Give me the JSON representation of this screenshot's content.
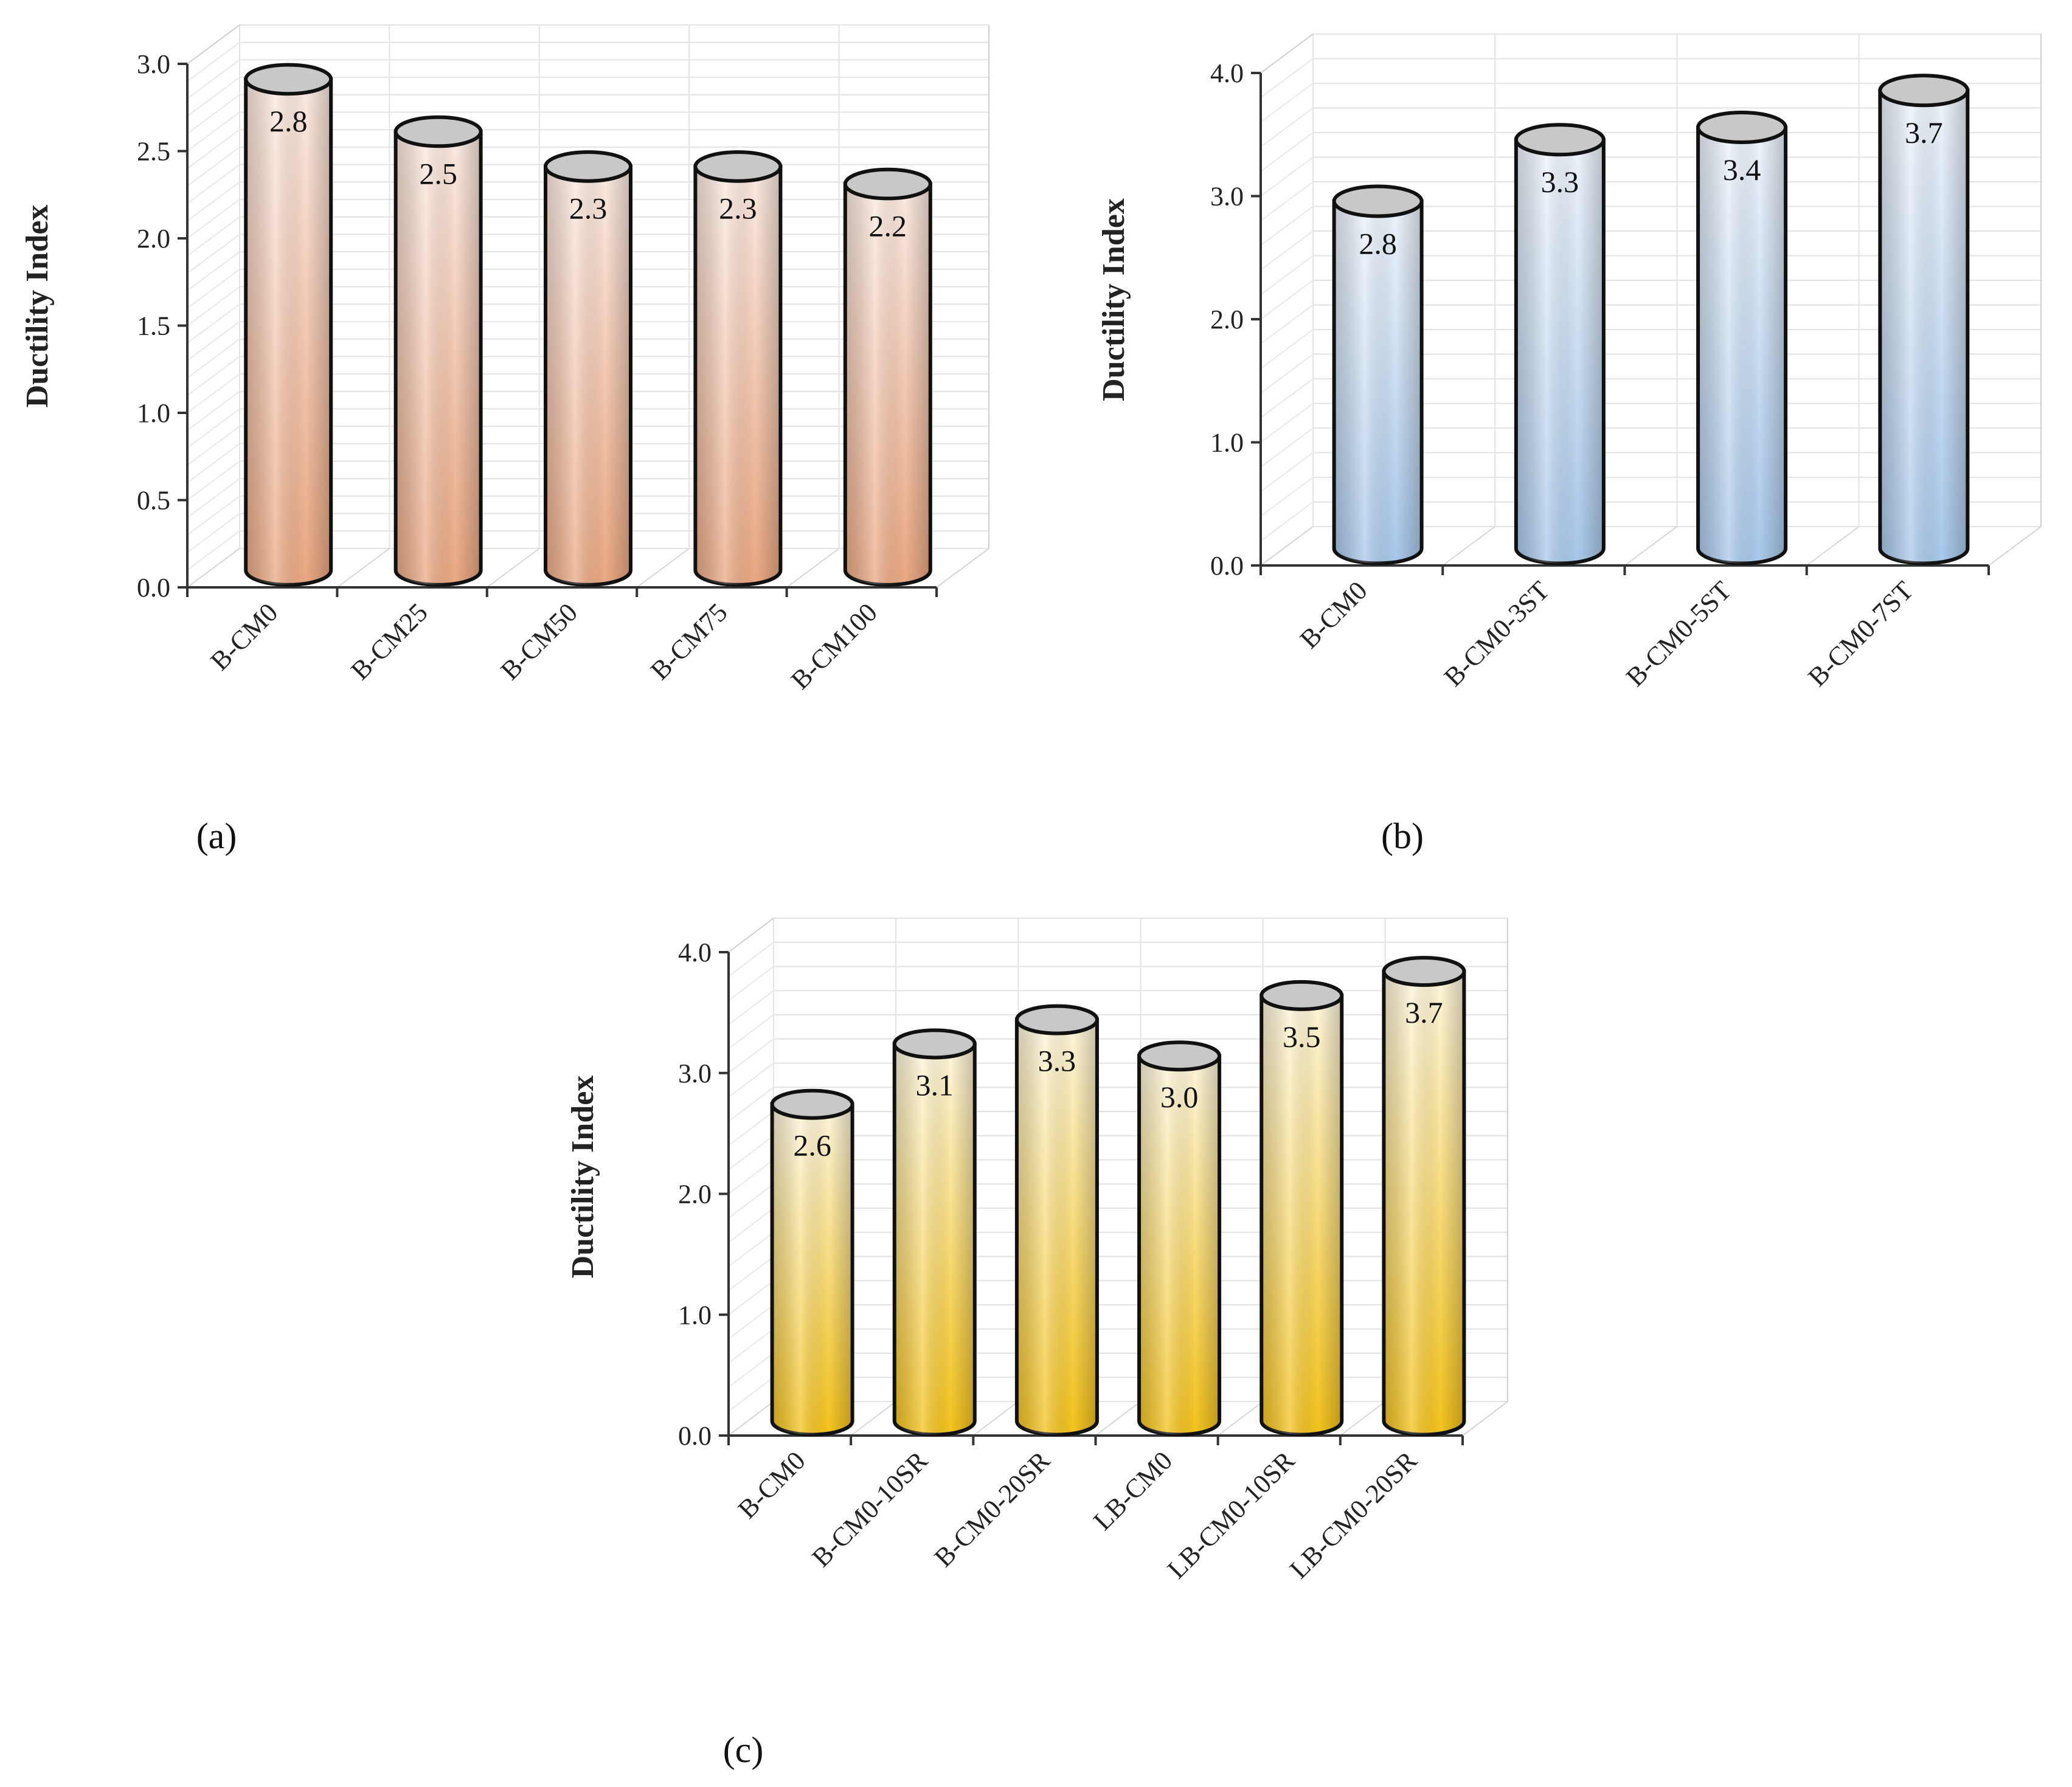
{
  "chart_data": [
    {
      "id": "a",
      "type": "bar",
      "style": "3d-cylinder",
      "panel_label": "(a)",
      "ylabel": "Ductility Index",
      "xlabel": "",
      "ylim": [
        0,
        3.0
      ],
      "yticks": [
        "0.0",
        "0.5",
        "1.0",
        "1.5",
        "2.0",
        "2.5",
        "3.0"
      ],
      "ytick_values": [
        0,
        0.5,
        1.0,
        1.5,
        2.0,
        2.5,
        3.0
      ],
      "minor_grid_step": 0.1,
      "categories": [
        "B-CM0",
        "B-CM25",
        "B-CM50",
        "B-CM75",
        "B-CM100"
      ],
      "values": [
        2.8,
        2.5,
        2.3,
        2.3,
        2.2
      ],
      "data_labels": [
        "2.8",
        "2.5",
        "2.3",
        "2.3",
        "2.2"
      ],
      "colors": {
        "top": "#fbeae2",
        "bottom": "#eaa882",
        "cap": "#c8c8c8"
      }
    },
    {
      "id": "b",
      "type": "bar",
      "style": "3d-cylinder",
      "panel_label": "(b)",
      "ylabel": "Ductility Index",
      "xlabel": "",
      "ylim": [
        0,
        4.0
      ],
      "yticks": [
        "0.0",
        "1.0",
        "2.0",
        "3.0",
        "4.0"
      ],
      "ytick_values": [
        0,
        1.0,
        2.0,
        3.0,
        4.0
      ],
      "minor_grid_step": 0.2,
      "categories": [
        "B-CM0",
        "B-CM0-3ST",
        "B-CM0-5ST",
        "B-CM0-7ST"
      ],
      "values": [
        2.8,
        3.3,
        3.4,
        3.7
      ],
      "data_labels": [
        "2.8",
        "3.3",
        "3.4",
        "3.7"
      ],
      "colors": {
        "top": "#eef4fb",
        "bottom": "#a8c8ea",
        "cap": "#c8c8c8"
      }
    },
    {
      "id": "c",
      "type": "bar",
      "style": "3d-cylinder",
      "panel_label": "(c)",
      "ylabel": "Ductility Index",
      "xlabel": "",
      "ylim": [
        0,
        4.0
      ],
      "yticks": [
        "0.0",
        "1.0",
        "2.0",
        "3.0",
        "4.0"
      ],
      "ytick_values": [
        0,
        1.0,
        2.0,
        3.0,
        4.0
      ],
      "minor_grid_step": 0.2,
      "categories": [
        "B-CM0",
        "B-CM0-10SR",
        "B-CM0-20SR",
        "LB-CM0",
        "LB-CM0-10SR",
        "LB-CM0-20SR"
      ],
      "values": [
        2.6,
        3.1,
        3.3,
        3.0,
        3.5,
        3.7
      ],
      "data_labels": [
        "2.6",
        "3.1",
        "3.3",
        "3.0",
        "3.5",
        "3.7"
      ],
      "colors": {
        "top": "#fdf6dc",
        "bottom": "#f3c21c",
        "cap": "#c8c8c8"
      }
    }
  ]
}
